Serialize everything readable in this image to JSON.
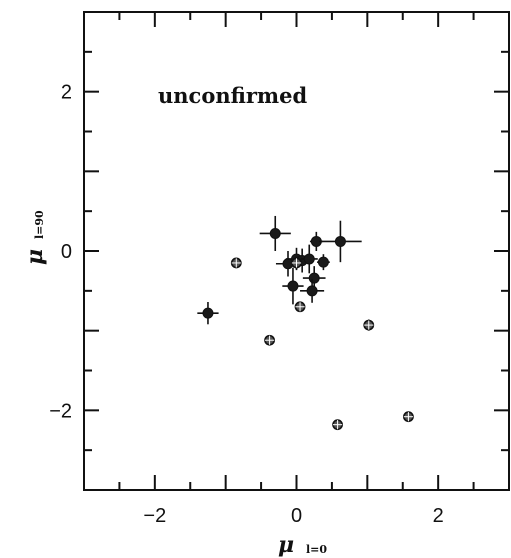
{
  "chart_data": {
    "type": "scatter",
    "title": "",
    "annotation": "unconfirmed",
    "xlabel": {
      "symbol": "μ",
      "subscript": "l=0"
    },
    "ylabel": {
      "symbol": "μ",
      "subscript": "l=90"
    },
    "xlim": [
      -3,
      3
    ],
    "ylim": [
      -3,
      3
    ],
    "xticks": [
      -2,
      0,
      2
    ],
    "yticks": [
      -2,
      0,
      2
    ],
    "xtick_labels": [
      "−2",
      "0",
      "2"
    ],
    "ytick_labels": [
      "−2",
      "0",
      "2"
    ],
    "grid": false,
    "series": [
      {
        "marker": "filled-circle",
        "points": [
          {
            "x": -1.25,
            "y": -0.78,
            "xerr": 0.15,
            "yerr": 0.14
          },
          {
            "x": -0.3,
            "y": 0.22,
            "xerr": 0.22,
            "yerr": 0.22
          },
          {
            "x": -0.12,
            "y": -0.16,
            "xerr": 0.17,
            "yerr": 0.16
          },
          {
            "x": 0.0,
            "y": -0.1,
            "xerr": 0.15,
            "yerr": 0.14
          },
          {
            "x": 0.08,
            "y": -0.12,
            "xerr": 0.12,
            "yerr": 0.15
          },
          {
            "x": 0.18,
            "y": -0.1,
            "xerr": 0.12,
            "yerr": 0.18
          },
          {
            "x": -0.05,
            "y": -0.44,
            "xerr": 0.15,
            "yerr": 0.23
          },
          {
            "x": 0.25,
            "y": -0.34,
            "xerr": 0.16,
            "yerr": 0.15
          },
          {
            "x": 0.22,
            "y": -0.5,
            "xerr": 0.17,
            "yerr": 0.15
          },
          {
            "x": 0.28,
            "y": 0.12,
            "xerr": 0.09,
            "yerr": 0.12
          },
          {
            "x": 0.62,
            "y": 0.12,
            "xerr": 0.3,
            "yerr": 0.26
          },
          {
            "x": 0.38,
            "y": -0.14,
            "xerr": 0.09,
            "yerr": 0.1
          }
        ]
      },
      {
        "marker": "crossed-circle",
        "points": [
          {
            "x": -0.85,
            "y": -0.15,
            "xerr": 0.05,
            "yerr": 0.05
          },
          {
            "x": -0.38,
            "y": -1.12,
            "xerr": 0.04,
            "yerr": 0.04
          },
          {
            "x": 0.0,
            "y": -0.15,
            "xerr": 0.08,
            "yerr": 0.08
          },
          {
            "x": 0.05,
            "y": -0.7,
            "xerr": 0.06,
            "yerr": 0.06
          },
          {
            "x": 1.02,
            "y": -0.93,
            "xerr": 0.07,
            "yerr": 0.07
          },
          {
            "x": 0.58,
            "y": -2.18,
            "xerr": 0.05,
            "yerr": 0.05
          },
          {
            "x": 1.58,
            "y": -2.08,
            "xerr": 0.05,
            "yerr": 0.05
          }
        ]
      }
    ]
  }
}
